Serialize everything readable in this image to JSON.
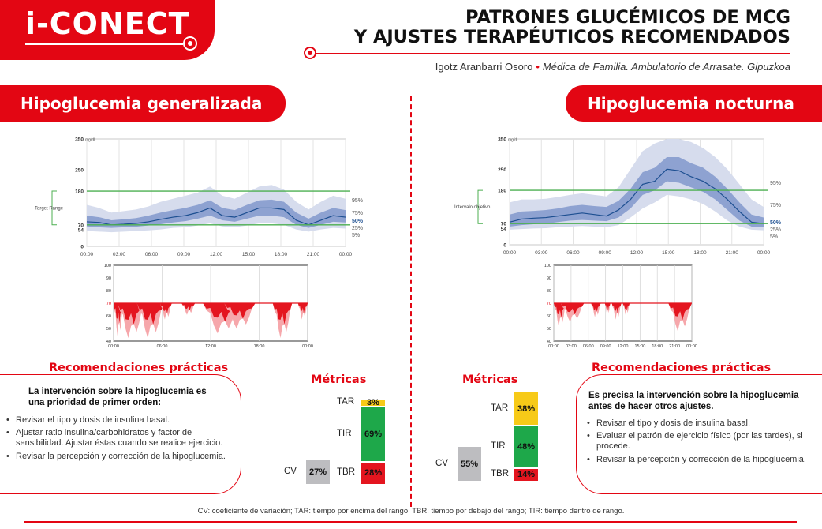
{
  "header": {
    "logo": "i-CONECT",
    "title_line1": "PATRONES GLUCÉMICOS DE MCG",
    "title_line2": "Y AJUSTES TERAPÉUTICOS RECOMENDADOS",
    "author": "Igotz Aranbarri Osoro",
    "separator": "•",
    "role": "Médica de Familia. Ambulatorio de Arrasate. Gipuzkoa"
  },
  "left": {
    "section_title": "Hipoglucemia generalizada",
    "agp": {
      "y_ticks": [
        "350",
        "250",
        "180",
        "70",
        "54",
        "0"
      ],
      "y_unit": "mg/dL",
      "range_label": "Target Range",
      "x_ticks": [
        "00:00",
        "03:00",
        "06:00",
        "09:00",
        "12:00",
        "15:00",
        "18:00",
        "21:00",
        "00:00"
      ],
      "percentiles": [
        "95%",
        "75%",
        "50%",
        "25%",
        "5%"
      ],
      "median": [
        80,
        78,
        70,
        72,
        75,
        80,
        88,
        95,
        100,
        110,
        125,
        100,
        95,
        110,
        125,
        125,
        120,
        85,
        70,
        85,
        100,
        95
      ],
      "p25": [
        65,
        62,
        60,
        62,
        64,
        68,
        72,
        78,
        82,
        90,
        100,
        85,
        80,
        90,
        100,
        100,
        95,
        70,
        60,
        70,
        80,
        78
      ],
      "p75": [
        100,
        95,
        85,
        88,
        92,
        100,
        110,
        118,
        125,
        135,
        150,
        125,
        118,
        135,
        150,
        152,
        145,
        110,
        90,
        110,
        125,
        118
      ],
      "p5": [
        50,
        48,
        46,
        48,
        50,
        52,
        55,
        60,
        62,
        68,
        75,
        65,
        62,
        68,
        75,
        75,
        70,
        55,
        48,
        55,
        60,
        58
      ],
      "p95": [
        135,
        125,
        110,
        115,
        120,
        130,
        145,
        155,
        165,
        175,
        195,
        165,
        155,
        175,
        195,
        200,
        185,
        145,
        120,
        145,
        165,
        155
      ]
    },
    "hypo": {
      "y_ticks": [
        "100",
        "90",
        "80",
        "70",
        "60",
        "50",
        "40"
      ],
      "x_ticks": [
        "00:00",
        "06:00",
        "12:00",
        "18:00",
        "00:00"
      ],
      "threshold": "70"
    },
    "rec_title": "Recomendaciones prácticas",
    "rec_lead": "La intervención sobre la hipoglucemia es una prioridad de primer orden:",
    "rec_items": [
      "Revisar el tipo y dosis de insulina basal.",
      "Ajustar ratio insulina/carbohidratos y factor de sensibilidad. Ajustar éstas cuando se realice ejercicio.",
      "Revisar la percepción y corrección de la hipoglucemia."
    ],
    "metrics": {
      "title": "Métricas",
      "tar_label": "TAR",
      "tar_value": "3%",
      "tar_pct": 3,
      "tir_label": "TIR",
      "tir_value": "69%",
      "tir_pct": 69,
      "tbr_label": "TBR",
      "tbr_value": "28%",
      "tbr_pct": 28,
      "cv_label": "CV",
      "cv_value": "27%",
      "cv_pct": 27
    }
  },
  "right": {
    "section_title": "Hipoglucemia nocturna",
    "agp": {
      "y_ticks": [
        "350",
        "250",
        "180",
        "70",
        "54",
        "0"
      ],
      "y_unit": "mg/dL",
      "range_label": "Intervalo objetivo",
      "x_ticks": [
        "00:00",
        "03:00",
        "06:00",
        "09:00",
        "12:00",
        "15:00",
        "18:00",
        "21:00",
        "00:00"
      ],
      "percentiles": [
        "95%",
        "75%",
        "50%",
        "25%",
        "5%"
      ],
      "median": [
        75,
        85,
        88,
        90,
        95,
        100,
        105,
        100,
        95,
        115,
        150,
        200,
        210,
        250,
        245,
        225,
        210,
        185,
        150,
        110,
        75,
        70
      ],
      "p25": [
        60,
        65,
        68,
        70,
        75,
        80,
        82,
        80,
        78,
        90,
        120,
        165,
        180,
        210,
        205,
        190,
        175,
        150,
        115,
        80,
        60,
        58
      ],
      "p75": [
        100,
        110,
        112,
        115,
        120,
        128,
        132,
        128,
        125,
        145,
        185,
        240,
        255,
        290,
        290,
        270,
        255,
        225,
        185,
        140,
        100,
        90
      ],
      "p5": [
        50,
        52,
        54,
        55,
        58,
        60,
        62,
        60,
        58,
        65,
        90,
        120,
        140,
        165,
        160,
        150,
        135,
        110,
        80,
        60,
        50,
        48
      ],
      "p95": [
        140,
        150,
        150,
        152,
        158,
        165,
        170,
        165,
        160,
        190,
        250,
        310,
        335,
        350,
        350,
        340,
        320,
        290,
        250,
        200,
        150,
        125
      ]
    },
    "hypo": {
      "y_ticks": [
        "100",
        "90",
        "80",
        "70",
        "60",
        "50",
        "40"
      ],
      "x_ticks": [
        "00:00",
        "03:00",
        "06:00",
        "09:00",
        "12:00",
        "15:00",
        "18:00",
        "21:00",
        "00:00"
      ],
      "threshold": "70"
    },
    "rec_title": "Recomendaciones prácticas",
    "rec_lead": "Es precisa la intervención sobre la hipoglucemia antes de hacer otros ajustes.",
    "rec_items": [
      "Revisar el tipo y dosis de insulina basal.",
      "Evaluar el patrón de ejercicio físico (por las tardes), si procede.",
      "Revisar la percepción y corrección de la hipoglucemia."
    ],
    "metrics": {
      "title": "Métricas",
      "tar_label": "TAR",
      "tar_value": "38%",
      "tar_pct": 38,
      "tir_label": "TIR",
      "tir_value": "48%",
      "tir_pct": 48,
      "tbr_label": "TBR",
      "tbr_value": "14%",
      "tbr_pct": 14,
      "cv_label": "CV",
      "cv_value": "55%",
      "cv_pct": 55
    }
  },
  "footnote": "CV: coeficiente de variación; TAR: tiempo por encima del rango; TBR: tiempo por debajo del rango; TIR: tiempo dentro de rango.",
  "colors": {
    "accent": "#e30613",
    "tar": "#f7ca18",
    "tir": "#1ea84a",
    "tbr": "#e4151f",
    "cv": "#bdbdc0",
    "band_outer": "#d6dced",
    "band_inner": "#8ea2d1",
    "median": "#1d4f91",
    "range_line": "#4caf50"
  }
}
